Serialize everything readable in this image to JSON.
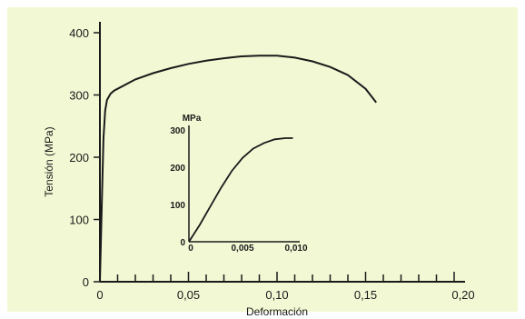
{
  "colors": {
    "background": "#f3f8d4",
    "line": "#1a1a1a"
  },
  "chart_data": [
    {
      "type": "line",
      "xlabel": "Deformación",
      "ylabel": "Tensión (MPa)",
      "xlim": [
        0,
        0.2
      ],
      "ylim": [
        0,
        400
      ],
      "x_ticks": [
        0,
        0.05,
        0.1,
        0.15,
        0.2
      ],
      "x_tick_labels": [
        "0",
        "0,05",
        "0,10",
        "0,15",
        "0,20"
      ],
      "x_minor_step": 0.01,
      "y_ticks": [
        0,
        100,
        200,
        300,
        400
      ],
      "y_tick_labels": [
        "0",
        "100",
        "200",
        "300",
        "400"
      ],
      "grid": false,
      "series": [
        {
          "x": [
            0,
            0.001,
            0.002,
            0.003,
            0.004,
            0.006,
            0.008,
            0.01,
            0.02,
            0.03,
            0.04,
            0.05,
            0.06,
            0.07,
            0.08,
            0.09,
            0.1,
            0.11,
            0.12,
            0.13,
            0.14,
            0.15,
            0.156
          ],
          "y": [
            0,
            120,
            230,
            275,
            292,
            302,
            307,
            310,
            325,
            335,
            343,
            350,
            355,
            359,
            362,
            363,
            363,
            360,
            354,
            345,
            332,
            310,
            288
          ]
        }
      ]
    },
    {
      "type": "line",
      "unit_label": "MPa",
      "xlim": [
        0,
        0.01
      ],
      "ylim": [
        0,
        300
      ],
      "x_ticks": [
        0,
        0.005,
        0.01
      ],
      "x_tick_labels": [
        "0",
        "0,005",
        "0,010"
      ],
      "y_ticks": [
        0,
        100,
        200,
        300
      ],
      "y_tick_labels": [
        "0",
        "100",
        "200",
        "300"
      ],
      "grid": false,
      "series": [
        {
          "x": [
            0,
            0.001,
            0.002,
            0.003,
            0.004,
            0.005,
            0.006,
            0.007,
            0.008,
            0.009,
            0.0097
          ],
          "y": [
            0,
            45,
            95,
            145,
            190,
            225,
            250,
            265,
            275,
            278,
            278
          ]
        }
      ]
    }
  ]
}
